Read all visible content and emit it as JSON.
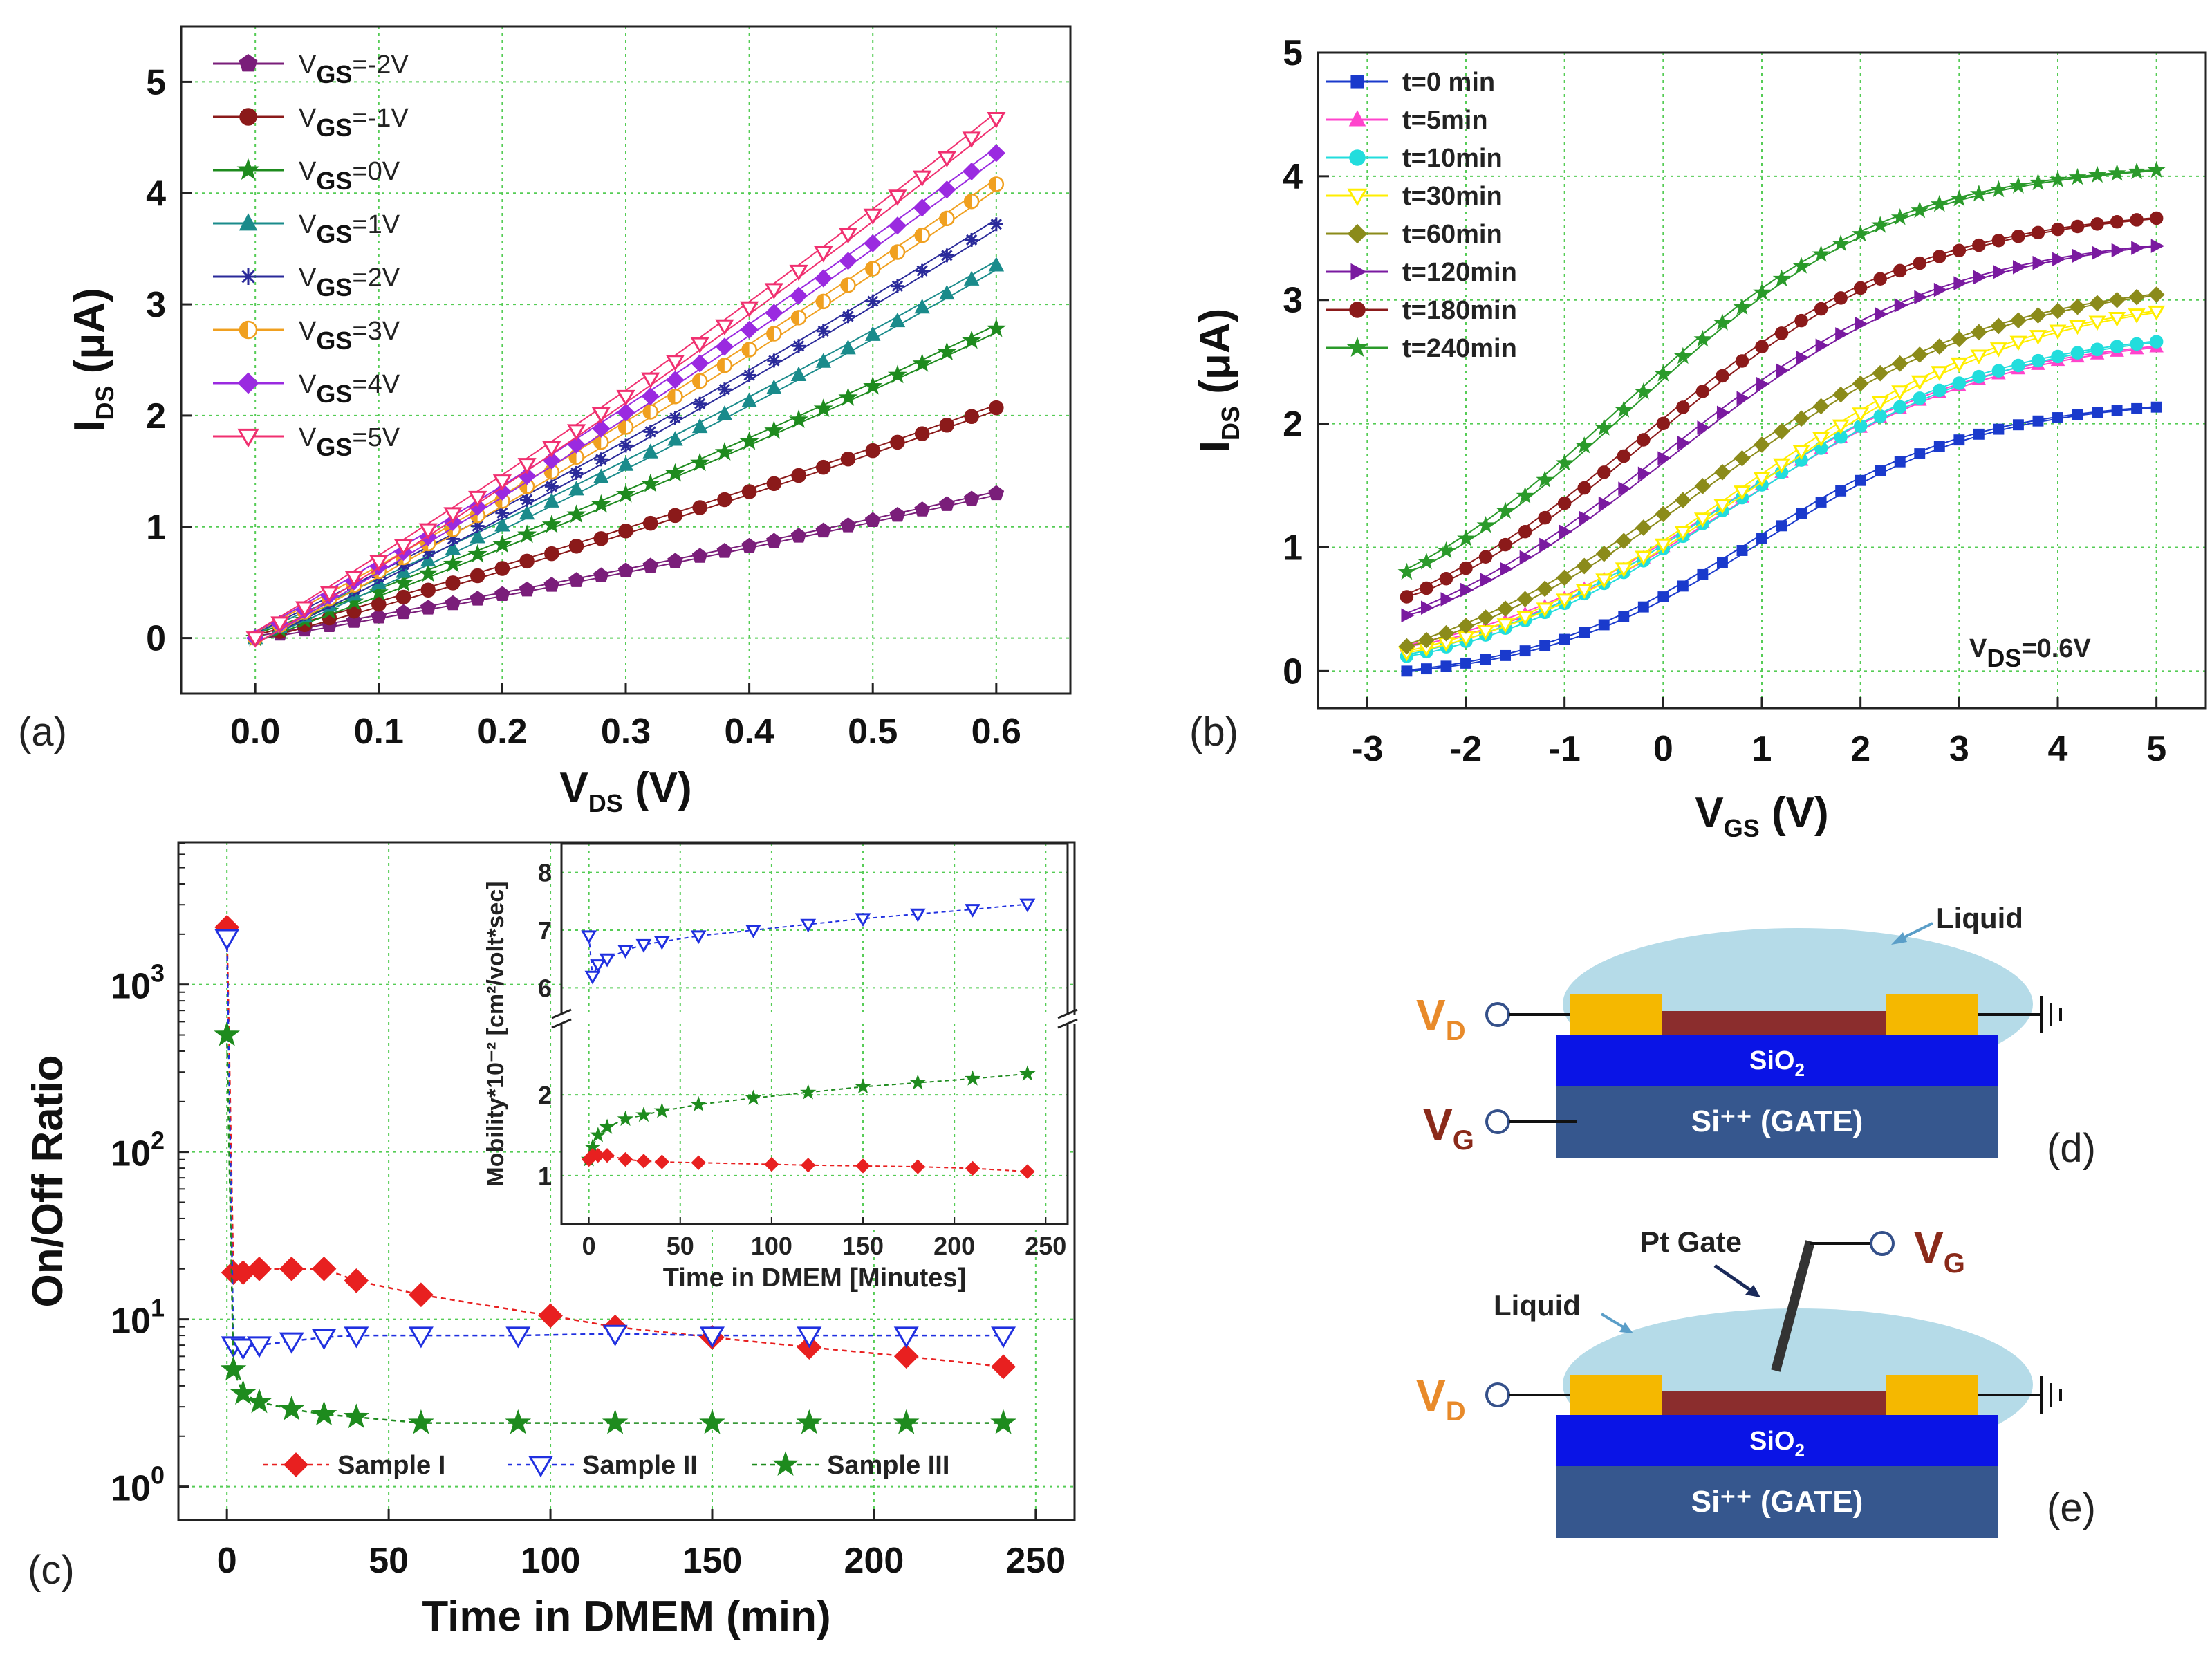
{
  "panels": {
    "a": {
      "label": "(a)"
    },
    "b": {
      "label": "(b)",
      "annotation_main": "V",
      "annotation_sub": "DS",
      "annotation_rest": "=0.6V"
    },
    "c": {
      "label": "(c)"
    },
    "d": {
      "label": "(d)",
      "liquid_label": "Liquid",
      "oxide_main": "SiO",
      "oxide_sub": "2",
      "gate_label": "Si⁺⁺ (GATE)",
      "vd_main": "V",
      "vd_sub": "D",
      "vg_main": "V",
      "vg_sub": "G"
    },
    "e": {
      "label": "(e)",
      "liquid_label": "Liquid",
      "pt_gate_label": "Pt Gate",
      "oxide_main": "SiO",
      "oxide_sub": "2",
      "gate_label": "Si⁺⁺ (GATE)",
      "vd_main": "V",
      "vd_sub": "D",
      "vg_main": "V",
      "vg_sub": "G"
    }
  },
  "colors": {
    "liquid": "#b5dbe8",
    "contact": "#f5b800",
    "channel": "#8b2d2d",
    "oxide": "#0a14e6",
    "gate": "#36578e",
    "vd_text": "#e88a2a",
    "vg_text": "#8a2a1a",
    "grid": "#55cc55"
  },
  "chart_data": [
    {
      "id": "a",
      "type": "line",
      "xlabel_main": "V",
      "xlabel_sub": "DS",
      "xlabel_rest": " (V)",
      "ylabel_main": "I",
      "ylabel_sub": "DS",
      "ylabel_rest": " (μA)",
      "xlim": [
        -0.06,
        0.66
      ],
      "ylim": [
        -0.5,
        5.5
      ],
      "xticks": [
        "0.0",
        "0.1",
        "0.2",
        "0.3",
        "0.4",
        "0.5",
        "0.6"
      ],
      "yticks": [
        "0",
        "1",
        "2",
        "3",
        "4",
        "5"
      ],
      "x_start": 0,
      "x_end": 0.6,
      "x_step": 0.02,
      "legend_position": "top-left",
      "series": [
        {
          "label_main": "V",
          "label_sub": "GS",
          "label_rest": "=-2V",
          "end": 1.3,
          "color": "#7a1e7a",
          "marker": "pentagon"
        },
        {
          "label_main": "V",
          "label_sub": "GS",
          "label_rest": "=-1V",
          "end": 2.07,
          "color": "#8b1a1a",
          "marker": "circle"
        },
        {
          "label_main": "V",
          "label_sub": "GS",
          "label_rest": "=0V",
          "end": 2.78,
          "color": "#1e8b1e",
          "marker": "star"
        },
        {
          "label_main": "V",
          "label_sub": "GS",
          "label_rest": "=1V",
          "end": 3.35,
          "color": "#1a8b8b",
          "marker": "triangle-up"
        },
        {
          "label_main": "V",
          "label_sub": "GS",
          "label_rest": "=2V",
          "end": 3.72,
          "color": "#2a2a9a",
          "marker": "asterisk"
        },
        {
          "label_main": "V",
          "label_sub": "GS",
          "label_rest": "=3V",
          "end": 4.08,
          "color": "#f0a020",
          "marker": "half-circle"
        },
        {
          "label_main": "V",
          "label_sub": "GS",
          "label_rest": "=4V",
          "end": 4.36,
          "color": "#9a2ae0",
          "marker": "diamond"
        },
        {
          "label_main": "V",
          "label_sub": "GS",
          "label_rest": "=5V",
          "end": 4.67,
          "color": "#f03070",
          "marker": "triangle-down"
        }
      ]
    },
    {
      "id": "b",
      "type": "line",
      "xlabel_main": "V",
      "xlabel_sub": "GS",
      "xlabel_rest": " (V)",
      "ylabel_main": "I",
      "ylabel_sub": "DS",
      "ylabel_rest": " (μA)",
      "xlim": [
        -3.5,
        5.5
      ],
      "ylim": [
        -0.3,
        5.0
      ],
      "xticks": [
        "-3",
        "-2",
        "-1",
        "0",
        "1",
        "2",
        "3",
        "4",
        "5"
      ],
      "yticks": [
        "0",
        "1",
        "2",
        "3",
        "4",
        "5"
      ],
      "x_start": -2.6,
      "x_end": 5.0,
      "x_step": 0.2,
      "legend_position": "top-left",
      "series": [
        {
          "label": "t=0 min",
          "low": 0.0,
          "high": 2.3,
          "shift": 0.95,
          "width": 1.15,
          "color": "#1a3acc",
          "marker": "square"
        },
        {
          "label": "t=5min",
          "low": 0.2,
          "high": 2.95,
          "shift": 0.7,
          "width": 1.35,
          "color": "#ff44cc",
          "marker": "triangle-up"
        },
        {
          "label": "t=10min",
          "low": 0.12,
          "high": 3.05,
          "shift": 0.65,
          "width": 1.4,
          "color": "#22dddd",
          "marker": "circle"
        },
        {
          "label": "t=30min",
          "low": 0.15,
          "high": 3.35,
          "shift": 0.85,
          "width": 1.45,
          "color": "#ffee00",
          "marker": "triangle-down"
        },
        {
          "label": "t=60min",
          "low": 0.2,
          "high": 3.6,
          "shift": 0.4,
          "width": 1.5,
          "color": "#8b8b1a",
          "marker": "diamond"
        },
        {
          "label": "t=120min",
          "low": 0.45,
          "high": 4.05,
          "shift": 0.05,
          "width": 1.45,
          "color": "#7a1aa0",
          "marker": "triangle-right"
        },
        {
          "label": "t=180min",
          "low": 0.6,
          "high": 4.3,
          "shift": -0.15,
          "width": 1.4,
          "color": "#8b1a1a",
          "marker": "circle"
        },
        {
          "label": "t=240min",
          "low": 0.8,
          "high": 4.75,
          "shift": -0.35,
          "width": 1.35,
          "color": "#2a9a2a",
          "marker": "star"
        }
      ]
    },
    {
      "id": "c",
      "type": "scatter",
      "xlabel": "Time in DMEM (min)",
      "ylabel": "On/Off Ratio",
      "xlim": [
        -15,
        262
      ],
      "ylim_log10": [
        -0.2,
        3.85
      ],
      "xticks": [
        "0",
        "50",
        "100",
        "150",
        "200",
        "250"
      ],
      "yticks": [
        {
          "base": "10",
          "exp": "0"
        },
        {
          "base": "10",
          "exp": "1"
        },
        {
          "base": "10",
          "exp": "2"
        },
        {
          "base": "10",
          "exp": "3"
        }
      ],
      "legend_position": "bottom",
      "series": [
        {
          "name": "Sample I",
          "color": "#e82020",
          "marker": "diamond",
          "x": [
            0,
            2,
            5,
            10,
            20,
            30,
            40,
            60,
            100,
            120,
            150,
            180,
            210,
            240
          ],
          "y": [
            2200,
            19,
            19,
            20,
            20,
            20,
            17,
            14,
            10.5,
            9,
            7.8,
            6.8,
            6.0,
            5.2
          ]
        },
        {
          "name": "Sample II",
          "color": "#2030e0",
          "marker": "triangle-down",
          "x": [
            0,
            2,
            5,
            10,
            20,
            30,
            40,
            60,
            90,
            120,
            150,
            180,
            210,
            240
          ],
          "y": [
            1900,
            7.0,
            6.8,
            7.0,
            7.4,
            7.8,
            8.0,
            8.0,
            8.0,
            8.2,
            8.0,
            8.0,
            8.0,
            8.0
          ]
        },
        {
          "name": "Sample III",
          "color": "#1e8b1e",
          "marker": "star",
          "x": [
            0,
            2,
            5,
            10,
            20,
            30,
            40,
            60,
            90,
            120,
            150,
            180,
            210,
            240
          ],
          "y": [
            500,
            5.0,
            3.6,
            3.2,
            2.9,
            2.7,
            2.6,
            2.4,
            2.4,
            2.4,
            2.4,
            2.4,
            2.4,
            2.4
          ]
        }
      ],
      "inset": {
        "xlabel": "Time in DMEM [Minutes]",
        "ylabel": "Mobility*10⁻² [cm²/volt*sec]",
        "xlim": [
          -15,
          262
        ],
        "xticks": [
          "0",
          "50",
          "100",
          "150",
          "200",
          "250"
        ],
        "upper_ylim": [
          5.5,
          8.5
        ],
        "upper_yticks": [
          "6",
          "7",
          "8"
        ],
        "lower_ylim": [
          0.4,
          2.9
        ],
        "lower_yticks": [
          "1",
          "2"
        ],
        "series": [
          {
            "name": "Sample II",
            "axis": "upper",
            "color": "#2030e0",
            "marker": "triangle-down",
            "x": [
              0,
              2,
              5,
              10,
              20,
              30,
              40,
              60,
              90,
              120,
              150,
              180,
              210,
              240
            ],
            "y": [
              6.9,
              6.2,
              6.4,
              6.5,
              6.65,
              6.75,
              6.8,
              6.9,
              7.0,
              7.1,
              7.2,
              7.28,
              7.36,
              7.45
            ]
          },
          {
            "name": "Sample III",
            "axis": "lower",
            "color": "#1e8b1e",
            "marker": "star",
            "x": [
              0,
              2,
              5,
              10,
              20,
              30,
              40,
              60,
              90,
              120,
              150,
              180,
              210,
              240
            ],
            "y": [
              1.2,
              1.35,
              1.5,
              1.6,
              1.7,
              1.75,
              1.8,
              1.88,
              1.96,
              2.03,
              2.1,
              2.15,
              2.2,
              2.26
            ]
          },
          {
            "name": "Sample I",
            "axis": "lower",
            "color": "#e82020",
            "marker": "diamond",
            "x": [
              0,
              2,
              5,
              10,
              20,
              30,
              40,
              60,
              100,
              120,
              150,
              180,
              210,
              240
            ],
            "y": [
              1.2,
              1.25,
              1.25,
              1.25,
              1.2,
              1.18,
              1.17,
              1.16,
              1.14,
              1.13,
              1.12,
              1.11,
              1.09,
              1.05
            ]
          }
        ]
      }
    }
  ]
}
